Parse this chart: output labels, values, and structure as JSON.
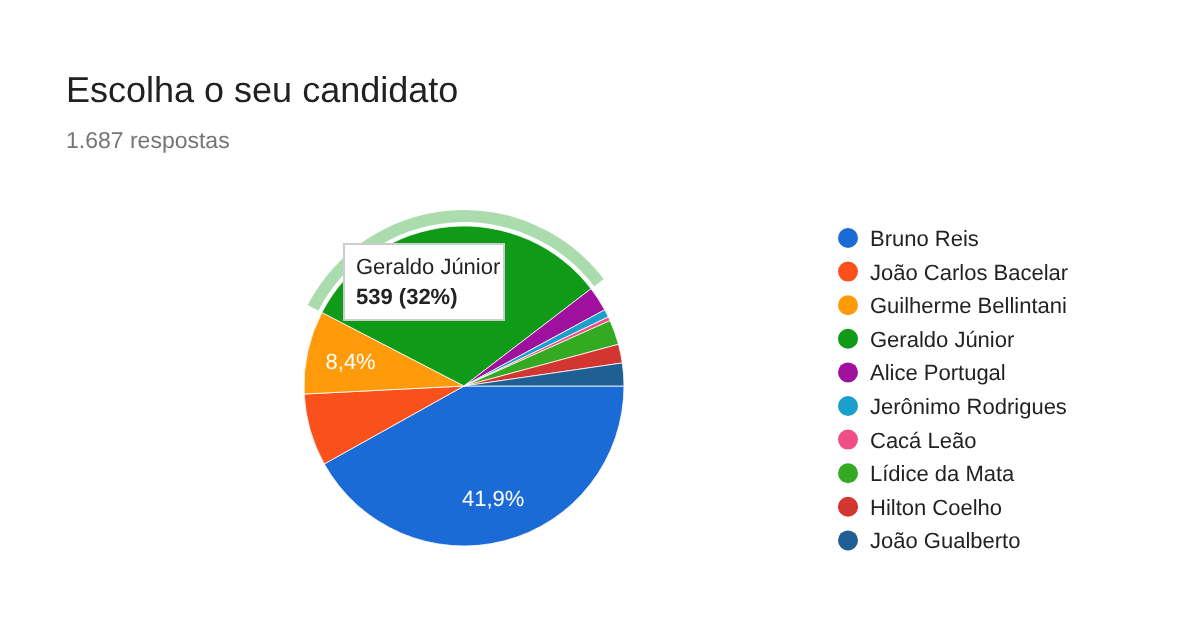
{
  "chart_data": {
    "type": "pie",
    "title": "Escolha o seu candidato",
    "subtitle": "1.687 respostas",
    "categories": [
      "Bruno Reis",
      "João Carlos Bacelar",
      "Guilherme Bellintani",
      "Geraldo Júnior",
      "Alice Portugal",
      "Jerônimo Rodrigues",
      "Cacá Leão",
      "Lídice da Mata",
      "Hilton Coelho",
      "João Gualberto"
    ],
    "values": [
      41.9,
      7.3,
      8.4,
      32,
      2.5,
      0.8,
      0.4,
      2.5,
      1.9,
      2.3
    ],
    "colors": [
      "#1a6bd6",
      "#f9501c",
      "#ff9a0a",
      "#0f9a18",
      "#a0109f",
      "#1aa0cc",
      "#ef4f84",
      "#33aa22",
      "#d33530",
      "#1f5f94"
    ],
    "value_labels": [
      "41,9%",
      null,
      "8,4%",
      null,
      null,
      null,
      null,
      null,
      null,
      null
    ],
    "annotations": [
      {
        "text": "Geraldo Júnior\n539 (32%)",
        "x": "Geraldo Júnior"
      }
    ],
    "legend": "right"
  }
}
